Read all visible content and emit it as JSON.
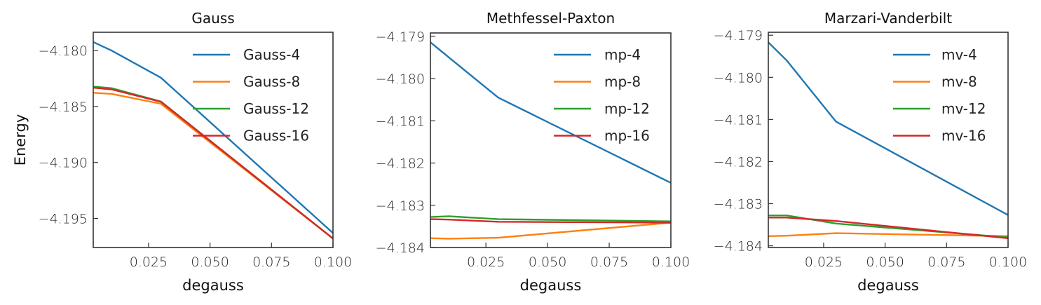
{
  "chart_data": [
    {
      "type": "line",
      "title": "Gauss",
      "xlabel": "degauss",
      "ylabel": "Energy",
      "xlim": [
        0.0025,
        0.1
      ],
      "ylim": [
        -4.1976,
        -4.17836
      ],
      "xticks": [
        0.025,
        0.05,
        0.075,
        0.1
      ],
      "xtick_labels": [
        "0.025",
        "0.050",
        "0.075",
        "0.100"
      ],
      "yticks": [
        -4.18,
        -4.185,
        -4.19,
        -4.195
      ],
      "ytick_labels": [
        "−4.180",
        "−4.185",
        "−4.190",
        "−4.195"
      ],
      "legend_position": "upper-right",
      "x": [
        0.0025,
        0.01,
        0.03,
        0.1
      ],
      "series": [
        {
          "name": "Gauss-4",
          "color": "#1f77b4",
          "values": [
            -4.17923,
            -4.18,
            -4.18242,
            -4.19631
          ]
        },
        {
          "name": "Gauss-8",
          "color": "#ff7f0e",
          "values": [
            -4.18377,
            -4.18387,
            -4.18475,
            -4.19679
          ]
        },
        {
          "name": "Gauss-12",
          "color": "#2ca02c",
          "values": [
            -4.18321,
            -4.18336,
            -4.18455,
            -4.1968
          ]
        },
        {
          "name": "Gauss-16",
          "color": "#d62728",
          "values": [
            -4.18332,
            -4.18347,
            -4.18458,
            -4.1968
          ]
        }
      ]
    },
    {
      "type": "line",
      "title": "Methfessel-Paxton",
      "xlabel": "degauss",
      "ylabel": "",
      "xlim": [
        0.0025,
        0.1
      ],
      "ylim": [
        -4.184,
        -4.17892
      ],
      "xticks": [
        0.025,
        0.05,
        0.075,
        0.1
      ],
      "xtick_labels": [
        "0.025",
        "0.050",
        "0.075",
        "0.100"
      ],
      "yticks": [
        -4.179,
        -4.18,
        -4.181,
        -4.182,
        -4.183,
        -4.184
      ],
      "ytick_labels": [
        "−4.179",
        "−4.180",
        "−4.181",
        "−4.182",
        "−4.183",
        "−4.184"
      ],
      "legend_position": "upper-right",
      "x": [
        0.0025,
        0.01,
        0.03,
        0.1
      ],
      "series": [
        {
          "name": "mp-4",
          "color": "#1f77b4",
          "values": [
            -4.17914,
            -4.1795,
            -4.18045,
            -4.18247
          ]
        },
        {
          "name": "mp-8",
          "color": "#ff7f0e",
          "values": [
            -4.18378,
            -4.18379,
            -4.18377,
            -4.18341
          ]
        },
        {
          "name": "mp-12",
          "color": "#2ca02c",
          "values": [
            -4.18328,
            -4.18326,
            -4.18333,
            -4.18338
          ]
        },
        {
          "name": "mp-16",
          "color": "#d62728",
          "values": [
            -4.18333,
            -4.18334,
            -4.18339,
            -4.18341
          ]
        }
      ]
    },
    {
      "type": "line",
      "title": "Marzari-Vanderbilt",
      "xlabel": "degauss",
      "ylabel": "",
      "xlim": [
        0.0025,
        0.1
      ],
      "ylim": [
        -4.18404,
        -4.17893
      ],
      "xticks": [
        0.025,
        0.05,
        0.075,
        0.1
      ],
      "xtick_labels": [
        "0.025",
        "0.050",
        "0.075",
        "0.100"
      ],
      "yticks": [
        -4.179,
        -4.18,
        -4.181,
        -4.182,
        -4.183,
        -4.184
      ],
      "ytick_labels": [
        "−4.179",
        "−4.180",
        "−4.181",
        "−4.182",
        "−4.183",
        "−4.184"
      ],
      "legend_position": "upper-right",
      "x": [
        0.0025,
        0.01,
        0.03,
        0.1
      ],
      "series": [
        {
          "name": "mv-4",
          "color": "#1f77b4",
          "values": [
            -4.17917,
            -4.1796,
            -4.18105,
            -4.18327
          ]
        },
        {
          "name": "mv-8",
          "color": "#ff7f0e",
          "values": [
            -4.18377,
            -4.18376,
            -4.1837,
            -4.18377
          ]
        },
        {
          "name": "mv-12",
          "color": "#2ca02c",
          "values": [
            -4.18328,
            -4.18328,
            -4.18347,
            -4.1838
          ]
        },
        {
          "name": "mv-16",
          "color": "#d62728",
          "values": [
            -4.18333,
            -4.18333,
            -4.18341,
            -4.18382
          ]
        }
      ]
    }
  ]
}
